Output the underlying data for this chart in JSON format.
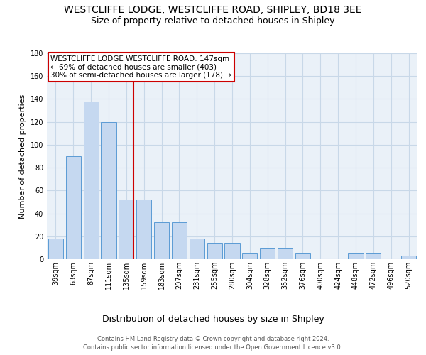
{
  "title": "WESTCLIFFE LODGE, WESTCLIFFE ROAD, SHIPLEY, BD18 3EE",
  "subtitle": "Size of property relative to detached houses in Shipley",
  "xlabel": "Distribution of detached houses by size in Shipley",
  "ylabel": "Number of detached properties",
  "categories": [
    "39sqm",
    "63sqm",
    "87sqm",
    "111sqm",
    "135sqm",
    "159sqm",
    "183sqm",
    "207sqm",
    "231sqm",
    "255sqm",
    "280sqm",
    "304sqm",
    "328sqm",
    "352sqm",
    "376sqm",
    "400sqm",
    "424sqm",
    "448sqm",
    "472sqm",
    "496sqm",
    "520sqm"
  ],
  "values": [
    18,
    90,
    138,
    120,
    52,
    52,
    32,
    32,
    18,
    14,
    14,
    5,
    10,
    10,
    5,
    0,
    0,
    5,
    5,
    0,
    3
  ],
  "bar_color": "#c5d8f0",
  "bar_edge_color": "#5b9bd5",
  "grid_color": "#c8d8e8",
  "background_color": "#eaf1f8",
  "vline_x": 4.4,
  "vline_color": "#cc0000",
  "annotation_text": "WESTCLIFFE LODGE WESTCLIFFE ROAD: 147sqm\n← 69% of detached houses are smaller (403)\n30% of semi-detached houses are larger (178) →",
  "annotation_box_color": "#cc0000",
  "ylim": [
    0,
    180
  ],
  "yticks": [
    0,
    20,
    40,
    60,
    80,
    100,
    120,
    140,
    160,
    180
  ],
  "footer_line1": "Contains HM Land Registry data © Crown copyright and database right 2024.",
  "footer_line2": "Contains public sector information licensed under the Open Government Licence v3.0.",
  "title_fontsize": 10,
  "subtitle_fontsize": 9,
  "tick_fontsize": 7,
  "ylabel_fontsize": 8,
  "xlabel_fontsize": 9,
  "annotation_fontsize": 7.5,
  "footer_fontsize": 6
}
